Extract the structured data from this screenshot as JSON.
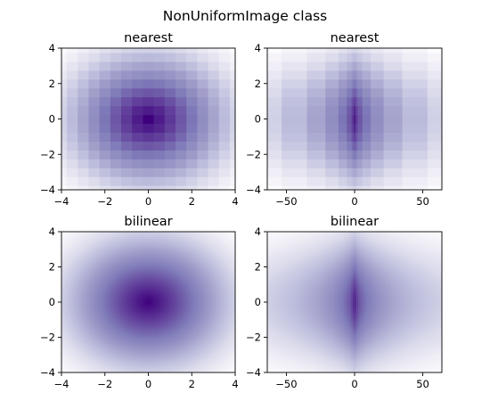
{
  "figure": {
    "suptitle": "NonUniformImage class"
  },
  "chart_data": [
    {
      "type": "heatmap",
      "title": "nearest",
      "interpolation": "nearest",
      "colormap": "Purples_r",
      "function": "sqrt(x^2 + y^2)",
      "x_grid": [
        -4,
        -3.5,
        -3,
        -2.5,
        -2,
        -1.5,
        -1,
        -0.5,
        0,
        0.5,
        1,
        1.5,
        2,
        2.5,
        3,
        3.5,
        4
      ],
      "y_grid": [
        -4,
        -3.5,
        -3,
        -2.5,
        -2,
        -1.5,
        -1,
        -0.5,
        0,
        0.5,
        1,
        1.5,
        2,
        2.5,
        3,
        3.5,
        4
      ],
      "xlim": [
        -4,
        4
      ],
      "ylim": [
        -4,
        4
      ],
      "xticks": [
        "−4",
        "−2",
        "0",
        "2",
        "4"
      ],
      "yticks": [
        "−4",
        "−2",
        "0",
        "2",
        "4"
      ],
      "xtick_values": [
        -4,
        -2,
        0,
        2,
        4
      ],
      "ytick_values": [
        -4,
        -2,
        0,
        2,
        4
      ]
    },
    {
      "type": "heatmap",
      "title": "nearest",
      "interpolation": "nearest",
      "colormap": "Purples_r",
      "function": "sqrt(x^2 + y^2), x = u^3",
      "x_grid": [
        -64,
        -42.875,
        -27,
        -15.625,
        -8,
        -3.375,
        -1,
        -0.125,
        0,
        0.125,
        1,
        3.375,
        8,
        15.625,
        27,
        42.875,
        64
      ],
      "y_grid": [
        -4,
        -3.5,
        -3,
        -2.5,
        -2,
        -1.5,
        -1,
        -0.5,
        0,
        0.5,
        1,
        1.5,
        2,
        2.5,
        3,
        3.5,
        4
      ],
      "xlim": [
        -64,
        64
      ],
      "ylim": [
        -4,
        4
      ],
      "xticks": [
        "−50",
        "0",
        "50"
      ],
      "yticks": [
        "−4",
        "−2",
        "0",
        "2",
        "4"
      ],
      "xtick_values": [
        -50,
        0,
        50
      ],
      "ytick_values": [
        -4,
        -2,
        0,
        2,
        4
      ]
    },
    {
      "type": "heatmap",
      "title": "bilinear",
      "interpolation": "bilinear",
      "colormap": "Purples_r",
      "function": "sqrt(x^2 + y^2)",
      "x_grid": [
        -4,
        -3.5,
        -3,
        -2.5,
        -2,
        -1.5,
        -1,
        -0.5,
        0,
        0.5,
        1,
        1.5,
        2,
        2.5,
        3,
        3.5,
        4
      ],
      "y_grid": [
        -4,
        -3.5,
        -3,
        -2.5,
        -2,
        -1.5,
        -1,
        -0.5,
        0,
        0.5,
        1,
        1.5,
        2,
        2.5,
        3,
        3.5,
        4
      ],
      "xlim": [
        -4,
        4
      ],
      "ylim": [
        -4,
        4
      ],
      "xticks": [
        "−4",
        "−2",
        "0",
        "2",
        "4"
      ],
      "yticks": [
        "−4",
        "−2",
        "0",
        "2",
        "4"
      ],
      "xtick_values": [
        -4,
        -2,
        0,
        2,
        4
      ],
      "ytick_values": [
        -4,
        -2,
        0,
        2,
        4
      ]
    },
    {
      "type": "heatmap",
      "title": "bilinear",
      "interpolation": "bilinear",
      "colormap": "Purples_r",
      "function": "sqrt(x^2 + y^2), x = u^3",
      "x_grid": [
        -64,
        -42.875,
        -27,
        -15.625,
        -8,
        -3.375,
        -1,
        -0.125,
        0,
        0.125,
        1,
        3.375,
        8,
        15.625,
        27,
        42.875,
        64
      ],
      "y_grid": [
        -4,
        -3.5,
        -3,
        -2.5,
        -2,
        -1.5,
        -1,
        -0.5,
        0,
        0.5,
        1,
        1.5,
        2,
        2.5,
        3,
        3.5,
        4
      ],
      "xlim": [
        -64,
        64
      ],
      "ylim": [
        -4,
        4
      ],
      "xticks": [
        "−50",
        "0",
        "50"
      ],
      "yticks": [
        "−4",
        "−2",
        "0",
        "2",
        "4"
      ],
      "xtick_values": [
        -50,
        0,
        50
      ],
      "ytick_values": [
        -4,
        -2,
        0,
        2,
        4
      ]
    }
  ]
}
